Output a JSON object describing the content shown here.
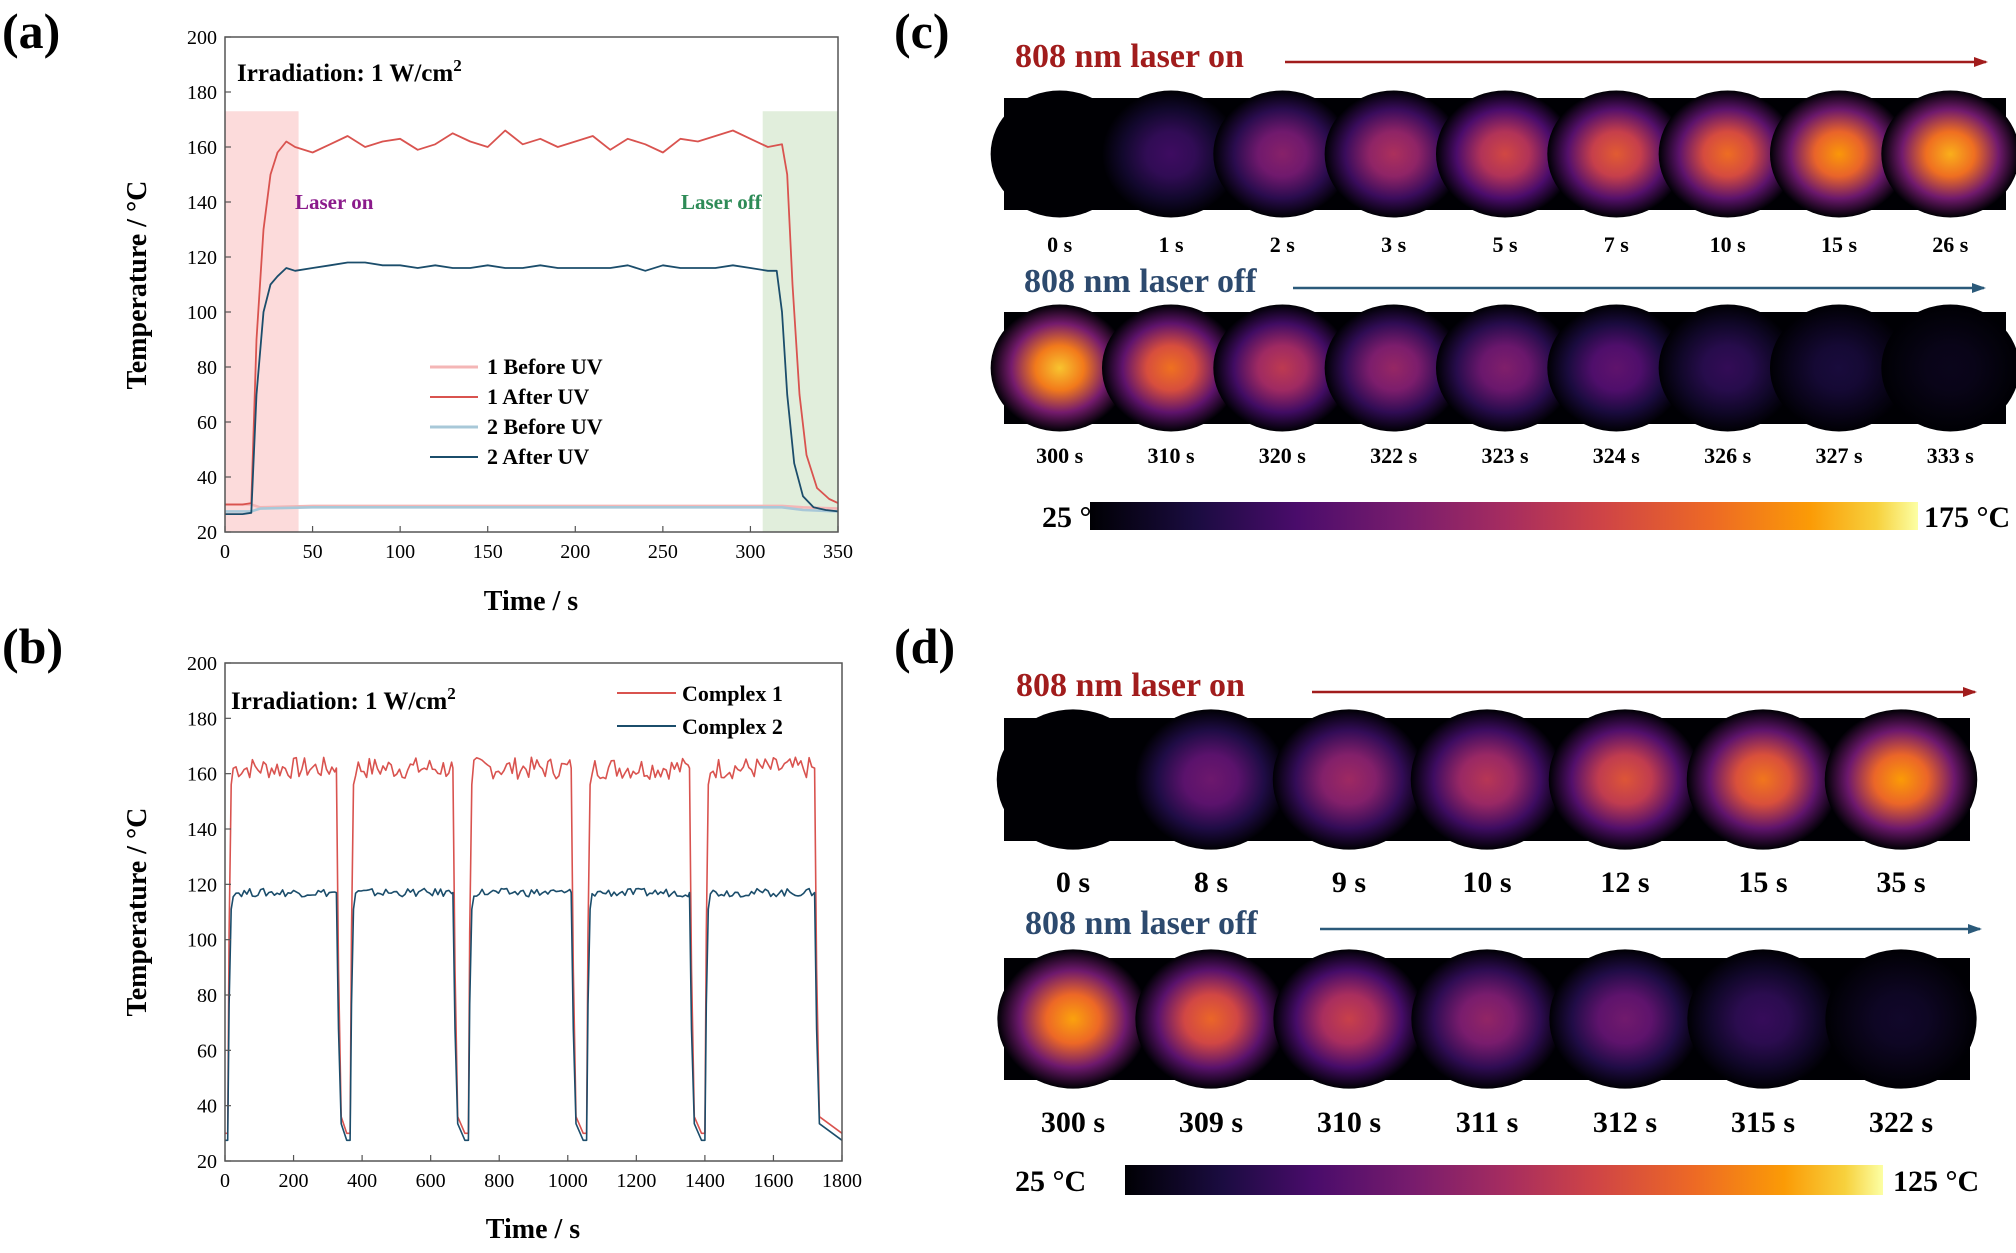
{
  "panels": {
    "a": {
      "label": "(a)",
      "irradiation": "Irradiation: 1 W/cm",
      "irradiation_sup": "2",
      "annotation_on": "Laser on",
      "annotation_off": "Laser off",
      "color_on": "#8b1a8b",
      "color_off": "#2e8b57"
    },
    "b": {
      "label": "(b)",
      "irradiation": "Irradiation: 1 W/cm",
      "irradiation_sup": "2"
    },
    "c": {
      "label": "(c)",
      "laser_on_title": "808 nm laser on",
      "laser_off_title": "808 nm laser off",
      "on_times": [
        "0 s",
        "1 s",
        "2 s",
        "3 s",
        "5 s",
        "7 s",
        "10 s",
        "15 s",
        "26 s"
      ],
      "on_intensity": [
        0.0,
        0.22,
        0.42,
        0.52,
        0.63,
        0.7,
        0.76,
        0.86,
        0.9
      ],
      "off_times": [
        "300 s",
        "310 s",
        "320 s",
        "322 s",
        "323 s",
        "324 s",
        "326 s",
        "327 s",
        "333 s"
      ],
      "off_intensity": [
        0.93,
        0.77,
        0.57,
        0.46,
        0.4,
        0.31,
        0.19,
        0.12,
        0.05
      ],
      "scale_min": "25 °C",
      "scale_max": "175 °C"
    },
    "d": {
      "label": "(d)",
      "laser_on_title": "808 nm laser on",
      "laser_off_title": "808 nm laser off",
      "on_times": [
        "0 s",
        "8 s",
        "9 s",
        "10 s",
        "12 s",
        "15 s",
        "35 s"
      ],
      "on_intensity": [
        0.0,
        0.35,
        0.48,
        0.55,
        0.68,
        0.78,
        0.87
      ],
      "off_times": [
        "300 s",
        "309 s",
        "310 s",
        "311 s",
        "312 s",
        "315 s",
        "322 s"
      ],
      "off_intensity": [
        0.88,
        0.74,
        0.6,
        0.45,
        0.36,
        0.2,
        0.08
      ],
      "scale_min": "25 °C",
      "scale_max": "125 °C"
    }
  },
  "colors": {
    "red": "#d9534f",
    "dark_red": "#a31515",
    "navy": "#1b4d6b",
    "light_pink": "#f4b6b6",
    "light_blue": "#a8c8d8",
    "on_band": "#fbd5d5",
    "off_band": "#dcebd6",
    "title_red": "#a11c1c",
    "title_blue": "#2d4a6e",
    "arrow_red": "#a11c1c",
    "arrow_blue": "#2b5a7a"
  },
  "chart_data": [
    {
      "id": "a",
      "type": "line",
      "xlabel": "Time / s",
      "ylabel": "Temperature / °C",
      "xlim": [
        0,
        350
      ],
      "ylim": [
        20,
        200
      ],
      "xticks": [
        0,
        50,
        100,
        150,
        200,
        250,
        300,
        350
      ],
      "yticks": [
        20,
        40,
        60,
        80,
        100,
        120,
        140,
        160,
        180,
        200
      ],
      "grid": false,
      "legend": "center-right",
      "bands": [
        {
          "from": 0,
          "to": 42,
          "label": "Laser on"
        },
        {
          "from": 307,
          "to": 350,
          "label": "Laser off"
        }
      ],
      "series": [
        {
          "name": "1 Before UV",
          "color": "#f4b6b6",
          "x": [
            0,
            15,
            20,
            50,
            100,
            150,
            200,
            250,
            300,
            318,
            330,
            350
          ],
          "y": [
            30,
            30,
            29,
            29.5,
            29.5,
            29.5,
            29.5,
            29.5,
            29.5,
            29.5,
            29,
            28.5
          ]
        },
        {
          "name": "1 After UV",
          "color": "#d9534f",
          "x": [
            0,
            10,
            15,
            18,
            22,
            26,
            30,
            35,
            40,
            50,
            60,
            70,
            80,
            90,
            100,
            110,
            120,
            130,
            140,
            150,
            160,
            170,
            180,
            190,
            200,
            210,
            220,
            230,
            240,
            250,
            260,
            270,
            280,
            290,
            300,
            310,
            318,
            321,
            324,
            328,
            332,
            338,
            345,
            350
          ],
          "y": [
            30,
            30,
            30.5,
            90,
            130,
            150,
            158,
            162,
            160,
            158,
            161,
            164,
            160,
            162,
            163,
            159,
            161,
            165,
            162,
            160,
            166,
            161,
            163,
            160,
            162,
            164,
            159,
            163,
            161,
            158,
            163,
            162,
            164,
            166,
            163,
            160,
            161,
            150,
            110,
            70,
            48,
            36,
            32,
            30.5
          ]
        },
        {
          "name": "2 Before UV",
          "color": "#a8c8d8",
          "x": [
            0,
            15,
            20,
            50,
            100,
            150,
            200,
            250,
            300,
            318,
            330,
            350
          ],
          "y": [
            27.5,
            27.5,
            28.5,
            29,
            29,
            29,
            29,
            29,
            29,
            29,
            28,
            27.5
          ]
        },
        {
          "name": "2 After UV",
          "color": "#1b4d6b",
          "x": [
            0,
            10,
            15,
            18,
            22,
            26,
            30,
            35,
            40,
            50,
            60,
            70,
            80,
            90,
            100,
            110,
            120,
            130,
            140,
            150,
            160,
            170,
            180,
            190,
            200,
            210,
            220,
            230,
            240,
            250,
            260,
            270,
            280,
            290,
            300,
            310,
            315,
            318,
            321,
            325,
            330,
            336,
            343,
            350
          ],
          "y": [
            26.5,
            26.5,
            27,
            70,
            100,
            110,
            113,
            116,
            115,
            116,
            117,
            118,
            118,
            117,
            117,
            116,
            117,
            116,
            116,
            117,
            116,
            116,
            117,
            116,
            116,
            116,
            116,
            117,
            115,
            117,
            116,
            116,
            116,
            117,
            116,
            115,
            115,
            100,
            70,
            45,
            33,
            29,
            28,
            27.5
          ]
        }
      ]
    },
    {
      "id": "b",
      "type": "line",
      "xlabel": "Time / s",
      "ylabel": "Temperature / °C",
      "xlim": [
        0,
        1800
      ],
      "ylim": [
        20,
        200
      ],
      "xticks": [
        0,
        200,
        400,
        600,
        800,
        1000,
        1200,
        1400,
        1600,
        1800
      ],
      "yticks": [
        20,
        40,
        60,
        80,
        100,
        120,
        140,
        160,
        180,
        200
      ],
      "grid": false,
      "legend": "top-right",
      "cycles": [
        {
          "on": 8,
          "off": 325,
          "end": 355
        },
        {
          "on": 365,
          "off": 665,
          "end": 700
        },
        {
          "on": 710,
          "off": 1010,
          "end": 1045
        },
        {
          "on": 1055,
          "off": 1355,
          "end": 1390
        },
        {
          "on": 1400,
          "off": 1720,
          "end": 1800
        }
      ],
      "series": [
        {
          "name": "Complex 1",
          "color": "#d9534f",
          "plateau": 162,
          "baseline": 30,
          "jitter": 4
        },
        {
          "name": "Complex 2",
          "color": "#1b4d6b",
          "plateau": 117,
          "baseline": 27.5,
          "jitter": 1.5
        }
      ]
    }
  ]
}
